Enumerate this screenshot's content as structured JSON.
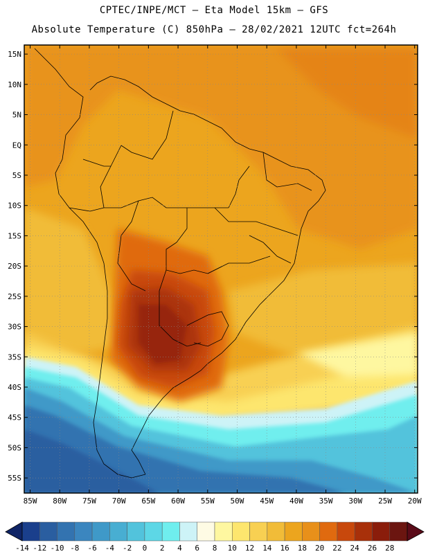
{
  "header": {
    "line1": "CPTEC/INPE/MCT –  Eta Model 15km – GFS",
    "line2": "Absolute Temperature (C) 850hPa – 28/02/2021 12UTC fct=264h"
  },
  "map": {
    "lat_labels": [
      "15N",
      "10N",
      "5N",
      "EQ",
      "5S",
      "10S",
      "15S",
      "20S",
      "25S",
      "30S",
      "35S",
      "40S",
      "45S",
      "50S",
      "55S"
    ],
    "lon_labels": [
      "85W",
      "80W",
      "75W",
      "70W",
      "65W",
      "60W",
      "55W",
      "50W",
      "45W",
      "40W",
      "35W",
      "30W",
      "25W",
      "20W"
    ],
    "lat_range": [
      -57.5,
      16.5
    ],
    "lon_range": [
      -86,
      -19.5
    ]
  },
  "colorbar": {
    "labels": [
      "-14",
      "-12",
      "-10",
      "-8",
      "-6",
      "-4",
      "-2",
      "0",
      "2",
      "4",
      "6",
      "8",
      "10",
      "12",
      "14",
      "16",
      "18",
      "20",
      "22",
      "24",
      "26",
      "28"
    ],
    "colors": [
      "#1a3f8c",
      "#2a5ea0",
      "#3373b0",
      "#3b86bf",
      "#3f99c8",
      "#48aed2",
      "#52c3dc",
      "#5dd7e6",
      "#6feeee",
      "#cdf3f7",
      "#fefbe4",
      "#fef7a0",
      "#fde66e",
      "#f8d052",
      "#f1bc38",
      "#eca51e",
      "#e8901a",
      "#e06a0f",
      "#c8480c",
      "#a8300a",
      "#8a1d0b",
      "#6b1510"
    ]
  }
}
